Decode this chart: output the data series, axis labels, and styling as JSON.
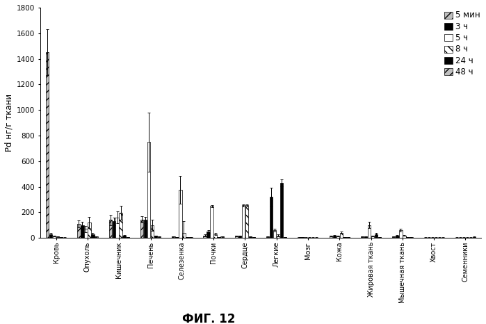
{
  "categories": [
    "Кровь",
    "Опухоль",
    "Кишечник",
    "Печень",
    "Селезенка",
    "Почки",
    "Сердце",
    "Легкие",
    "Мозг",
    "Кожа",
    "Жировая ткань",
    "Мышечная ткань",
    "Хвост",
    "Семенники"
  ],
  "series_labels": [
    "5 мин",
    "3 ч",
    "5 ч",
    "8 ч",
    "24 ч",
    "48 ч"
  ],
  "series_colors": [
    "#c0c0c0",
    "#000000",
    "#ffffff",
    "#ffffff",
    "#000000",
    "#c0c0c0"
  ],
  "series_hatches": [
    "///",
    "",
    "",
    "\\\\\\",
    "",
    "///"
  ],
  "series_edgecolors": [
    "#000000",
    "#000000",
    "#000000",
    "#000000",
    "#000000",
    "#000000"
  ],
  "values": [
    [
      1450,
      110,
      140,
      145,
      10,
      20,
      15,
      10,
      5,
      15,
      10,
      10,
      3,
      3
    ],
    [
      30,
      100,
      130,
      140,
      5,
      50,
      15,
      320,
      5,
      20,
      10,
      20,
      3,
      3
    ],
    [
      15,
      70,
      160,
      750,
      375,
      250,
      255,
      60,
      3,
      15,
      100,
      60,
      3,
      3
    ],
    [
      10,
      120,
      195,
      100,
      40,
      30,
      255,
      20,
      3,
      40,
      15,
      20,
      3,
      3
    ],
    [
      5,
      30,
      20,
      15,
      5,
      5,
      10,
      430,
      3,
      5,
      30,
      5,
      3,
      3
    ],
    [
      3,
      10,
      5,
      10,
      5,
      10,
      5,
      5,
      3,
      5,
      5,
      5,
      3,
      8
    ]
  ],
  "errors": [
    [
      180,
      25,
      40,
      25,
      3,
      8,
      4,
      4,
      2,
      4,
      3,
      3,
      1,
      1
    ],
    [
      8,
      25,
      30,
      25,
      1,
      12,
      4,
      70,
      2,
      4,
      3,
      3,
      1,
      1
    ],
    [
      4,
      25,
      45,
      230,
      110,
      8,
      8,
      12,
      1,
      4,
      25,
      12,
      1,
      1
    ],
    [
      4,
      45,
      55,
      45,
      90,
      8,
      8,
      8,
      1,
      8,
      4,
      4,
      1,
      1
    ],
    [
      1,
      8,
      4,
      4,
      1,
      1,
      2,
      25,
      1,
      1,
      8,
      1,
      1,
      1
    ],
    [
      1,
      2,
      1,
      2,
      1,
      2,
      1,
      1,
      1,
      1,
      1,
      1,
      1,
      2
    ]
  ],
  "ylabel": "Pd нг/г ткани",
  "ylim": [
    0,
    1800
  ],
  "yticks": [
    0,
    200,
    400,
    600,
    800,
    1000,
    1200,
    1400,
    1600,
    1800
  ],
  "figure_title": "ФИГ. 12",
  "background_color": "#ffffff",
  "bar_width": 0.11,
  "figsize": [
    6.99,
    4.66
  ],
  "dpi": 100
}
